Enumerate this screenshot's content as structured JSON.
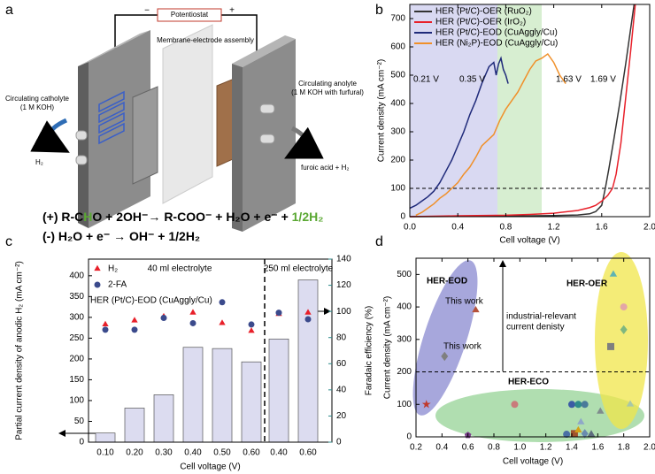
{
  "panel_labels": [
    "a",
    "b",
    "c",
    "d"
  ],
  "diagram": {
    "potentiostat": "Potentiostat",
    "minus": "−",
    "plus": "+",
    "membrane": "Membrane-electrode assembly",
    "catholyte": [
      "Circulating catholyte",
      "(1 M KOH)"
    ],
    "anolyte": [
      "Circulating anolyte",
      "(1 M KOH with furfural)"
    ],
    "cathode_product": "H₂",
    "anode_product": "furoic acid + H₂",
    "equations": [
      [
        "(+) R-C",
        "H",
        "O + 2OH⁻→ R-COO⁻ + H₂O + e⁻ + ",
        "1/2H₂"
      ],
      [
        "(-) H₂O + e⁻ → OH⁻ + 1/2H₂"
      ]
    ]
  },
  "chart_data": [
    {
      "type": "line",
      "xlabel": "Cell voltage (V)",
      "ylabel": "Current density (mA cm⁻²)",
      "xlim": [
        0,
        2
      ],
      "ylim": [
        0,
        750
      ],
      "xticks": [
        {
          "value": 0,
          "label": "0.0"
        },
        0.4,
        0.8,
        1.2,
        1.6,
        {
          "value": 2,
          "label": "2.0"
        }
      ],
      "yticks": [
        0,
        100,
        200,
        300,
        400,
        500,
        600,
        700
      ],
      "hline": 100,
      "annotations": [
        "0.21 V",
        "0.35 V",
        "1.63 V",
        "1.69 V"
      ],
      "series": [
        {
          "name": "HER (Pt/C)-OER (RuO₂)",
          "color": "#333333",
          "x": [
            0,
            0.4,
            0.8,
            1.2,
            1.4,
            1.5,
            1.55,
            1.6,
            1.63,
            1.66,
            1.7,
            1.75,
            1.8,
            1.85,
            1.87
          ],
          "values": [
            0,
            1,
            2,
            4,
            6,
            10,
            18,
            40,
            100,
            170,
            270,
            400,
            540,
            690,
            750
          ]
        },
        {
          "name": "HER (Pt/C)-OER (IrO₂)",
          "color": "#e8202a",
          "x": [
            0,
            0.4,
            0.8,
            1.0,
            1.2,
            1.4,
            1.5,
            1.55,
            1.6,
            1.65,
            1.69,
            1.72,
            1.76,
            1.8,
            1.84,
            1.88
          ],
          "values": [
            0,
            3,
            5,
            8,
            12,
            22,
            32,
            40,
            55,
            75,
            100,
            150,
            260,
            420,
            580,
            750
          ]
        },
        {
          "name": "HER (Pt/C)-EOD (CuAggly/Cu)",
          "color": "#1f2a7a",
          "x": [
            0,
            0.05,
            0.1,
            0.15,
            0.2,
            0.25,
            0.3,
            0.35,
            0.4,
            0.45,
            0.5,
            0.55,
            0.6,
            0.63,
            0.66,
            0.7,
            0.72,
            0.74,
            0.76,
            0.78,
            0.8,
            0.82
          ],
          "values": [
            30,
            40,
            55,
            70,
            90,
            120,
            160,
            200,
            250,
            300,
            360,
            410,
            470,
            500,
            530,
            545,
            500,
            540,
            560,
            520,
            500,
            470
          ]
        },
        {
          "name": "HER (Ni₂P)-EOD (CuAggly/Cu)",
          "color": "#f0902a",
          "x": [
            0.05,
            0.1,
            0.15,
            0.2,
            0.25,
            0.3,
            0.35,
            0.4,
            0.45,
            0.5,
            0.55,
            0.6,
            0.65,
            0.7,
            0.75,
            0.8,
            0.85,
            0.9,
            0.95,
            1.0,
            1.05,
            1.1,
            1.15,
            1.2,
            1.25,
            1.3
          ],
          "values": [
            5,
            15,
            30,
            45,
            65,
            80,
            100,
            120,
            150,
            175,
            210,
            250,
            270,
            290,
            340,
            380,
            410,
            440,
            480,
            520,
            550,
            560,
            575,
            545,
            500,
            470
          ]
        }
      ]
    },
    {
      "type": "bar",
      "xlabel": "Cell voltage (V)",
      "ylabel": "Partial current density of anodic H₂ (mA cm⁻²)",
      "y2label": "Faradaic efficiency (%)",
      "y2color": "#2a8a8a",
      "categories": [
        "0.10",
        "0.20",
        "0.30",
        "0.40",
        "0.50",
        "0.60",
        "0.40",
        "0.60"
      ],
      "groups": [
        "40 ml electrolyte",
        "250 ml electrolyte"
      ],
      "annotation": "HER (Pt/C)-EOD (CuAggly/Cu)",
      "ylim": [
        0,
        440
      ],
      "yticks": [
        0,
        50,
        100,
        150,
        200,
        250,
        300,
        350,
        400
      ],
      "y2lim": [
        0,
        140
      ],
      "y2ticks": [
        0,
        20,
        40,
        60,
        80,
        100,
        120,
        140
      ],
      "series": [
        {
          "type": "bar",
          "color": "#dcdcf0",
          "values": [
            22,
            82,
            114,
            228,
            225,
            193,
            248,
            390
          ]
        },
        {
          "type": "scatter",
          "name": "H₂",
          "color": "#e8202a",
          "marker": "triangle",
          "axis": "y2",
          "values": [
            90,
            93,
            96,
            99,
            91,
            85,
            98,
            99
          ]
        },
        {
          "type": "scatter",
          "name": "2-FA",
          "color": "#3b4a8c",
          "marker": "circle",
          "axis": "y2",
          "values": [
            86,
            86,
            95,
            91,
            107,
            90,
            99,
            94
          ]
        }
      ]
    },
    {
      "type": "scatter",
      "xlabel": "Cell voltage (V)",
      "ylabel": "Current density (mA cm⁻²)",
      "xlim": [
        0.2,
        2
      ],
      "ylim": [
        0,
        550
      ],
      "xticks": [
        0.2,
        0.4,
        0.6,
        0.8,
        {
          "value": 1,
          "label": "1.0"
        },
        1.2,
        1.4,
        1.6,
        1.8,
        {
          "value": 2,
          "label": "2.0"
        }
      ],
      "yticks": [
        0,
        100,
        200,
        300,
        400,
        500
      ],
      "hline": 200,
      "regions": [
        "HER-EOD",
        "HER-ECO",
        "HER-OER"
      ],
      "highlights": [
        "This work",
        "This work"
      ],
      "note": [
        "industrial-relevant",
        "current denisty"
      ],
      "x": [
        0.28,
        0.42,
        0.66,
        0.6,
        0.96,
        1.36,
        1.4,
        1.45,
        1.5,
        1.42,
        1.47,
        1.5,
        1.55,
        1.62,
        1.72,
        1.8,
        1.7,
        1.8,
        1.85,
        1.45
      ],
      "values": [
        100,
        248,
        390,
        5,
        100,
        8,
        100,
        100,
        100,
        10,
        45,
        10,
        8,
        78,
        500,
        400,
        278,
        330,
        100,
        20
      ],
      "colors": [
        "#c0392b",
        "#7f7f7f",
        "#b5523b",
        "#7b3f8c",
        "#c97b7b",
        "#4a6fa5",
        "#3b5ba5",
        "#2e8b8b",
        "#4a7a9a",
        "#a0522d",
        "#8fa8c8",
        "#6a8caf",
        "#5d6d7e",
        "#7f8c8d",
        "#5fb3b3",
        "#e3a6a6",
        "#7f7f7f",
        "#7fb77f",
        "#a8c8a8",
        "#d4a017"
      ],
      "markers": [
        "star",
        "diamond",
        "triangle",
        "pentagon",
        "circle",
        "circle",
        "circle",
        "circle",
        "circle",
        "square",
        "triangle",
        "diamond",
        "triangle",
        "triangle",
        "triangle",
        "circle",
        "square",
        "diamond",
        "triangle",
        "triangle"
      ]
    }
  ]
}
